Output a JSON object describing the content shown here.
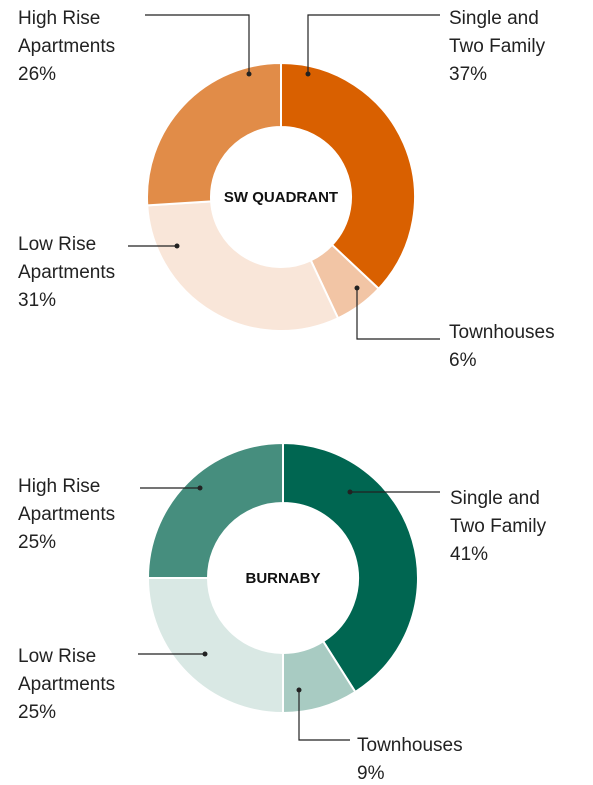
{
  "chart_data": [
    {
      "type": "pie",
      "title": "SW QUADRANT",
      "categories": [
        "Single and Two Family",
        "Townhouses",
        "Low Rise Apartments",
        "High Rise Apartments"
      ],
      "values": [
        37,
        6,
        31,
        26
      ],
      "value_labels": [
        "37%",
        "6%",
        "31%",
        "26%"
      ],
      "colors": [
        "#d96000",
        "#f2c5a5",
        "#f9e6d9",
        "#e18c48"
      ]
    },
    {
      "type": "pie",
      "title": "BURNABY",
      "categories": [
        "Single and Two Family",
        "Townhouses",
        "Low Rise Apartments",
        "High Rise Apartments"
      ],
      "values": [
        41,
        9,
        25,
        25
      ],
      "value_labels": [
        "41%",
        "9%",
        "25%",
        "25%"
      ],
      "colors": [
        "#006651",
        "#a8cbc2",
        "#d9e8e4",
        "#468e7e"
      ]
    }
  ]
}
